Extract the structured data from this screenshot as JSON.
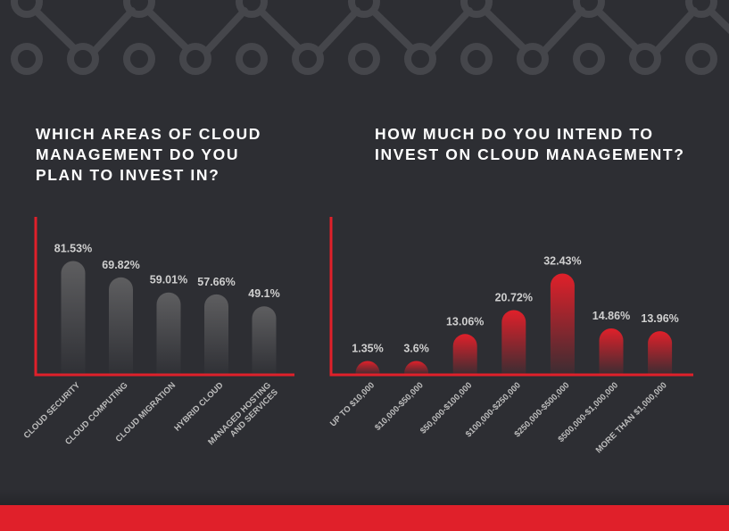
{
  "colors": {
    "background": "#2d2e33",
    "accent_red": "#e0202a",
    "grey_bar": "#5a5a5c",
    "text_light": "#c8c8c8",
    "title": "#ffffff"
  },
  "chart_data": [
    {
      "type": "bar",
      "title": "WHICH AREAS OF CLOUD\nMANAGEMENT DO YOU\nPLAN TO INVEST IN?",
      "categories": [
        "CLOUD SECURITY",
        "CLOUD COMPUTING",
        "CLOUD MIGRATION",
        "HYBRID CLOUD",
        "MANAGED HOSTING\nAND SERVICES"
      ],
      "values": [
        81.53,
        69.82,
        59.01,
        57.66,
        49.1
      ],
      "value_labels": [
        "81.53%",
        "69.82%",
        "59.01%",
        "57.66%",
        "49.1%"
      ],
      "ylim": [
        0,
        100
      ],
      "bar_color": "#5a5a5c",
      "grid": false,
      "legend": "none"
    },
    {
      "type": "bar",
      "title": "HOW MUCH DO YOU INTEND TO\nINVEST ON CLOUD MANAGEMENT?",
      "categories": [
        "UP TO $10,000",
        "$10,000-$50,000",
        "$50,000-$100,000",
        "$100,000-$250,000",
        "$250,000-$500,000",
        "$500,000-$1,000,000",
        "MORE THAN $1,000,000"
      ],
      "values": [
        1.35,
        3.6,
        13.06,
        20.72,
        32.43,
        14.86,
        13.96
      ],
      "value_labels": [
        "1.35%",
        "3.6%",
        "13.06%",
        "20.72%",
        "32.43%",
        "14.86%",
        "13.96%"
      ],
      "ylim": [
        0,
        40
      ],
      "bar_color": "#e0202a",
      "grid": false,
      "legend": "none"
    }
  ]
}
